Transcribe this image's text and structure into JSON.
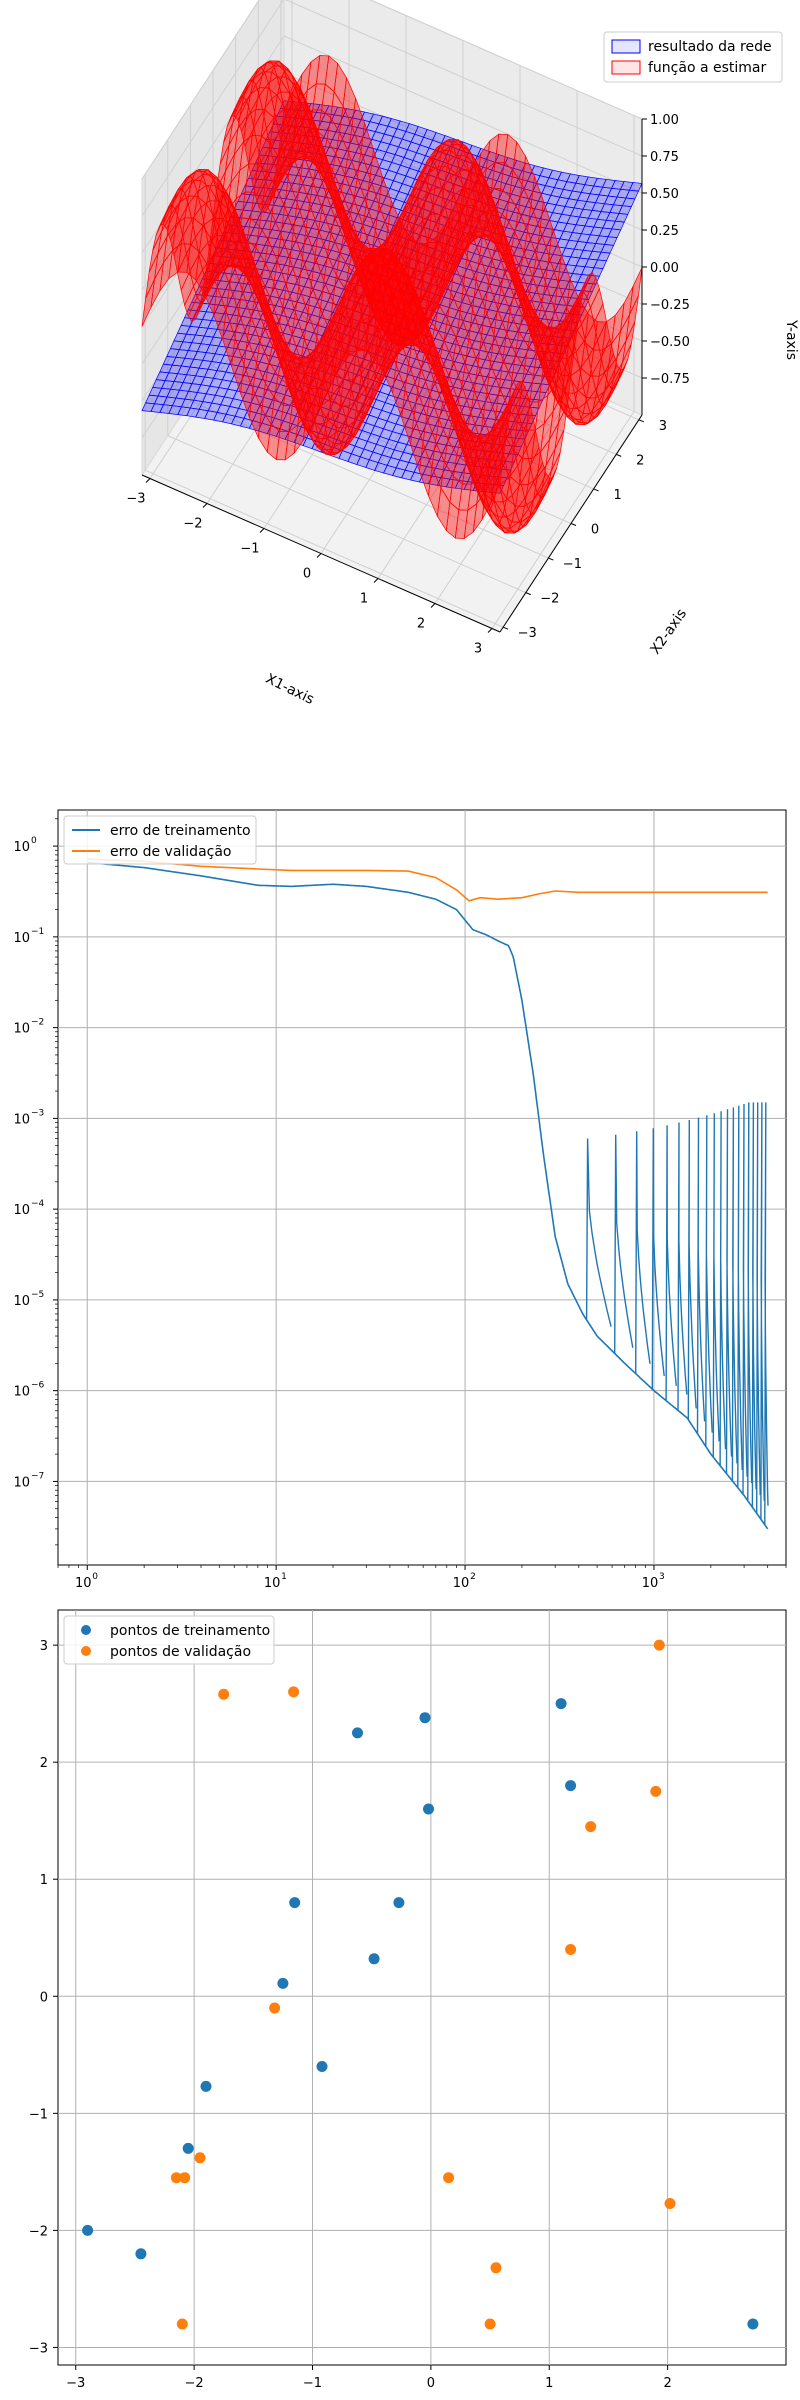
{
  "chart_data": [
    {
      "type": "surface3d",
      "xlabel": "X1-axis",
      "ylabel": "X2-axis",
      "zlabel": "Y-axis",
      "x_ticks": [
        "−3",
        "−2",
        "−1",
        "0",
        "1",
        "2",
        "3"
      ],
      "y_ticks": [
        "−3",
        "−2",
        "−1",
        "0",
        "1",
        "2",
        "3"
      ],
      "z_ticks": [
        "−0.75",
        "−0.50",
        "−0.25",
        "0.00",
        "0.25",
        "0.50",
        "0.75",
        "1.00"
      ],
      "xlim": [
        -3.14,
        3.14
      ],
      "ylim": [
        -3.14,
        3.14
      ],
      "zlim": [
        -1,
        1
      ],
      "legend_placement": "top-right",
      "series": [
        {
          "name": "resultado da rede",
          "color": "#0000ff"
        },
        {
          "name": "função a estimar",
          "color": "#ff0000"
        }
      ]
    },
    {
      "type": "line",
      "xscale": "log",
      "yscale": "log",
      "xlim": [
        0.7,
        5000
      ],
      "ylim": [
        1.2e-08,
        2.5
      ],
      "x_ticks": [
        "10",
        "10",
        "10",
        "10"
      ],
      "x_tick_exponents": [
        "0",
        "1",
        "2",
        "3"
      ],
      "y_ticks": [
        "10",
        "10",
        "10",
        "10",
        "10",
        "10",
        "10",
        "10"
      ],
      "y_tick_exponents": [
        "0",
        "−1",
        "−2",
        "−3",
        "−4",
        "−5",
        "−6",
        "−7"
      ],
      "grid": true,
      "legend_placement": "top-left",
      "series": [
        {
          "name": "erro de treinamento",
          "color": "#1f77b4",
          "points": [
            [
              1,
              0.66
            ],
            [
              2,
              0.58
            ],
            [
              4,
              0.47
            ],
            [
              8,
              0.37
            ],
            [
              12,
              0.36
            ],
            [
              20,
              0.38
            ],
            [
              30,
              0.36
            ],
            [
              50,
              0.31
            ],
            [
              70,
              0.26
            ],
            [
              90,
              0.2
            ],
            [
              110,
              0.12
            ],
            [
              130,
              0.105
            ],
            [
              150,
              0.09
            ],
            [
              170,
              0.08
            ],
            [
              180,
              0.06
            ],
            [
              200,
              0.02
            ],
            [
              230,
              0.003
            ],
            [
              260,
              0.0004
            ],
            [
              300,
              5e-05
            ],
            [
              350,
              1.5e-05
            ],
            [
              420,
              7e-06
            ],
            [
              500,
              4e-06
            ],
            [
              700,
              2e-06
            ],
            [
              1000,
              1e-06
            ],
            [
              1500,
              5e-07
            ],
            [
              2000,
              2e-07
            ],
            [
              3000,
              7e-08
            ],
            [
              4000,
              3e-08
            ]
          ]
        },
        {
          "name": "erro de validação",
          "color": "#ff7f0e",
          "points": [
            [
              1,
              0.72
            ],
            [
              2,
              0.68
            ],
            [
              4,
              0.6
            ],
            [
              8,
              0.56
            ],
            [
              12,
              0.54
            ],
            [
              20,
              0.54
            ],
            [
              30,
              0.54
            ],
            [
              50,
              0.53
            ],
            [
              70,
              0.45
            ],
            [
              90,
              0.33
            ],
            [
              105,
              0.25
            ],
            [
              120,
              0.27
            ],
            [
              150,
              0.26
            ],
            [
              200,
              0.27
            ],
            [
              250,
              0.3
            ],
            [
              300,
              0.32
            ],
            [
              400,
              0.31
            ],
            [
              600,
              0.31
            ],
            [
              1000,
              0.31
            ],
            [
              2000,
              0.31
            ],
            [
              4000,
              0.31
            ]
          ]
        }
      ]
    },
    {
      "type": "scatter",
      "xlim": [
        -3.15,
        3.0
      ],
      "ylim": [
        -3.15,
        3.3
      ],
      "x_ticks": [
        "−3",
        "−2",
        "−1",
        "0",
        "1",
        "2"
      ],
      "y_ticks": [
        "−3",
        "−2",
        "−1",
        "0",
        "1",
        "2",
        "3"
      ],
      "grid": true,
      "legend_placement": "top-left",
      "series": [
        {
          "name": "pontos de treinamento",
          "color": "#1f77b4",
          "points": [
            [
              -2.9,
              -2.0
            ],
            [
              -2.45,
              -2.2
            ],
            [
              -2.05,
              -1.3
            ],
            [
              -1.9,
              -0.77
            ],
            [
              -1.25,
              0.11
            ],
            [
              -1.15,
              0.8
            ],
            [
              -0.92,
              -0.6
            ],
            [
              -0.62,
              2.25
            ],
            [
              -0.48,
              0.32
            ],
            [
              -0.27,
              0.8
            ],
            [
              -0.05,
              2.38
            ],
            [
              -0.02,
              1.6
            ],
            [
              1.1,
              2.5
            ],
            [
              1.18,
              1.8
            ],
            [
              2.72,
              -2.8
            ]
          ]
        },
        {
          "name": "pontos de validação",
          "color": "#ff7f0e",
          "points": [
            [
              -2.15,
              -1.55
            ],
            [
              -2.08,
              -1.55
            ],
            [
              -2.1,
              -2.8
            ],
            [
              -1.95,
              -1.38
            ],
            [
              -1.75,
              2.58
            ],
            [
              -1.32,
              -0.1
            ],
            [
              -1.16,
              2.6
            ],
            [
              0.15,
              -1.55
            ],
            [
              0.5,
              -2.8
            ],
            [
              0.55,
              -2.32
            ],
            [
              1.18,
              0.4
            ],
            [
              1.35,
              1.45
            ],
            [
              1.9,
              1.75
            ],
            [
              1.93,
              3.0
            ],
            [
              2.02,
              -1.77
            ]
          ]
        }
      ]
    }
  ]
}
